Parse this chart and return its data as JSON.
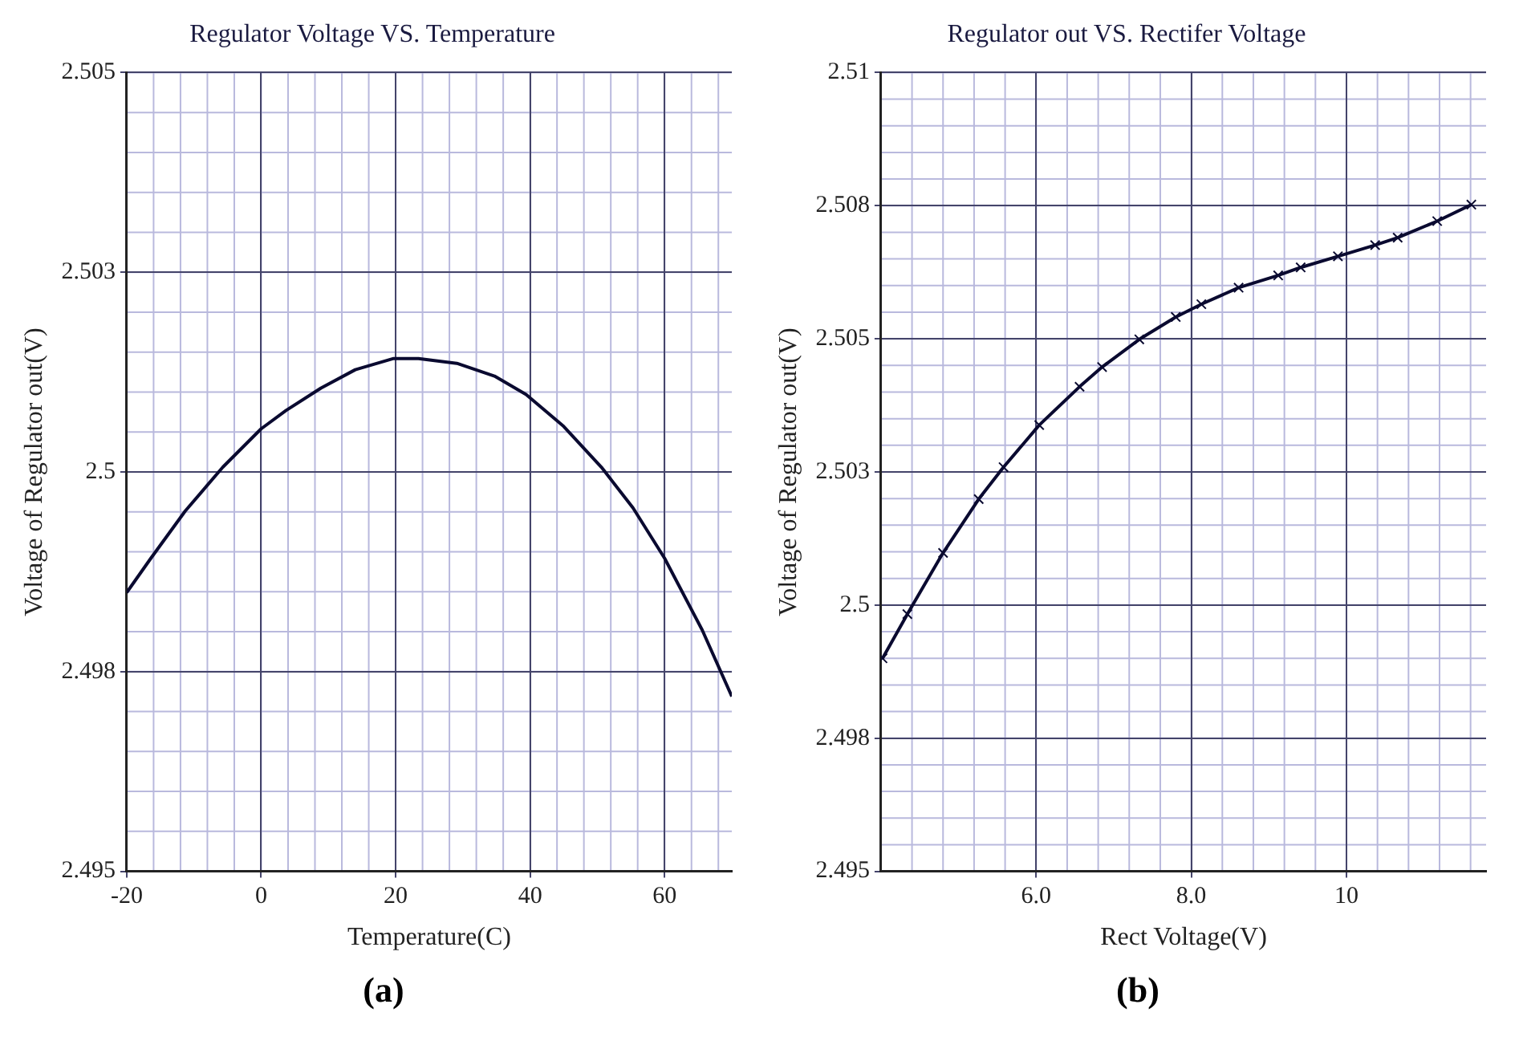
{
  "chart_data": [
    {
      "type": "line",
      "title": "Regulator Voltage VS. Temperature",
      "xlabel": "Temperature(C)",
      "ylabel": "Voltage of Regulator out(V)",
      "annotations": [
        "(a)"
      ],
      "series": [
        {
          "color": "#0a0a30",
          "x": [
            -20,
            -16.4,
            -11.3,
            -5.7,
            0,
            3.7,
            8.9,
            14.0,
            19.7,
            23.4,
            29.1,
            34.7,
            39.4,
            45.0,
            50.6,
            55.3,
            60,
            65.6,
            70
          ],
          "values": [
            2.49849,
            2.49892,
            2.49951,
            2.50006,
            2.50054,
            2.50077,
            2.50105,
            2.50128,
            2.50142,
            2.50142,
            2.50136,
            2.5012,
            2.50097,
            2.50057,
            2.50006,
            2.49955,
            2.49892,
            2.49802,
            2.49719
          ]
        }
      ],
      "xlim": [
        -20,
        70
      ],
      "ylim": [
        2.495,
        2.505
      ],
      "xticks": [
        -20,
        0,
        20,
        40,
        60
      ],
      "yticks": [
        2.495,
        {
          "value": 2.4975,
          "label": "2.498"
        },
        2.5,
        {
          "value": 2.5025,
          "label": "2.503"
        },
        2.505
      ],
      "grid": true,
      "marker": "none"
    },
    {
      "type": "line",
      "title": "Regulator out VS. Rectifer Voltage",
      "xlabel": "Rect Voltage(V)",
      "ylabel": "Voltage of Regulator out(V)",
      "annotations": [
        "(b)"
      ],
      "series": [
        {
          "color": "#0a0a30",
          "x": [
            4.02,
            4.34,
            4.8,
            5.26,
            5.58,
            6.04,
            6.56,
            6.85,
            7.33,
            7.8,
            8.13,
            8.61,
            9.12,
            9.41,
            9.89,
            10.37,
            10.66,
            11.17,
            11.61
          ],
          "values": [
            2.499,
            2.49983,
            2.50098,
            2.50199,
            2.50259,
            2.50338,
            2.5041,
            2.50447,
            2.50499,
            2.50541,
            2.50565,
            2.50596,
            2.50619,
            2.50634,
            2.50655,
            2.50676,
            2.5069,
            2.50721,
            2.50752
          ]
        }
      ],
      "xlim": [
        4,
        11.8
      ],
      "ylim": [
        2.495,
        2.51
      ],
      "xticks": [
        {
          "value": 6,
          "label": "6.0"
        },
        {
          "value": 8,
          "label": "8.0"
        },
        10
      ],
      "yticks": [
        2.495,
        {
          "value": 2.4975,
          "label": "2.498"
        },
        2.5,
        {
          "value": 2.5025,
          "label": "2.503"
        },
        2.505,
        {
          "value": 2.5075,
          "label": "2.508"
        },
        2.51
      ],
      "grid": true,
      "marker": "cross"
    }
  ]
}
